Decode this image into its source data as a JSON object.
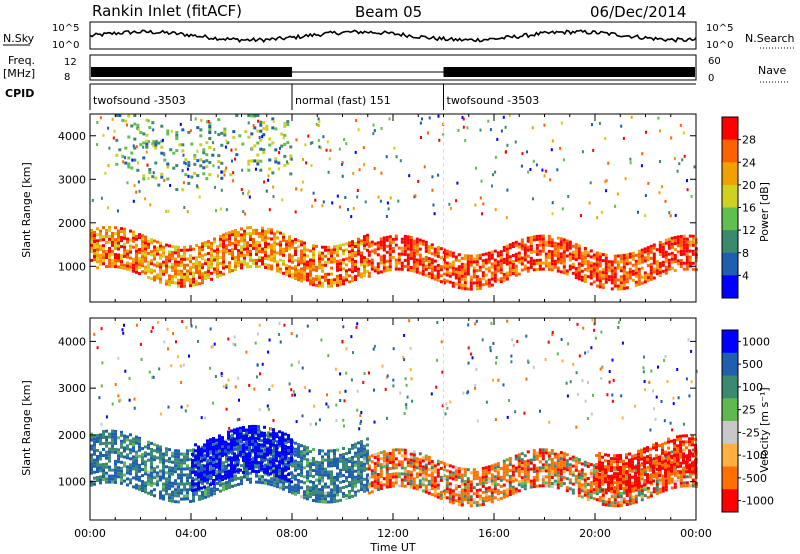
{
  "header": {
    "station": "Rankin Inlet (fitACF)",
    "beam": "Beam 05",
    "date": "06/Dec/2014"
  },
  "status_panels": {
    "nsky_label": "N.Sky",
    "nsearch_label": "N.Search",
    "freq_label": "Freq.",
    "freq_unit": "[MHz]",
    "nave_label": "Nave",
    "cpid_label": "CPID",
    "noise_ticks": [
      "10^5",
      "10^0"
    ],
    "freq_ticks": [
      "12",
      "8"
    ],
    "nave_ticks": [
      "60",
      "0"
    ]
  },
  "cpid_segments": [
    {
      "label": "twofsound -3503",
      "start_hour": 0,
      "end_hour": 8
    },
    {
      "label": "normal (fast) 151",
      "start_hour": 8,
      "end_hour": 14
    },
    {
      "label": "twofsound -3503",
      "start_hour": 14,
      "end_hour": 24
    }
  ],
  "colors": {
    "power_scale": [
      "#0000ff",
      "#1f5fb0",
      "#3b8a6f",
      "#5fbf4f",
      "#d0d020",
      "#f0a000",
      "#ff6000",
      "#ff0000"
    ],
    "velocity_scale": [
      "#0000ff",
      "#1f5fb0",
      "#3b8a6f",
      "#60b850",
      "#c8c8c8",
      "#ffb040",
      "#ff7000",
      "#ff0000"
    ]
  },
  "chart_data": [
    {
      "type": "heatmap",
      "panel": "power",
      "xlabel": "Time UT",
      "ylabel": "Slant Range [km]",
      "xlim": [
        0,
        24
      ],
      "ylim": [
        180,
        4500
      ],
      "x_ticks": [
        "00:00",
        "04:00",
        "08:00",
        "12:00",
        "16:00",
        "20:00",
        "00:00"
      ],
      "y_ticks": [
        1000,
        2000,
        3000,
        4000
      ],
      "colorbar": {
        "label": "Power [dB]",
        "ticks": [
          "4",
          "8",
          "12",
          "16",
          "20",
          "24",
          "28"
        ],
        "range": [
          0,
          30
        ]
      },
      "echo_bands": [
        {
          "start_hour": 0,
          "end_hour": 11,
          "range_low": 800,
          "range_high": 1700,
          "power_db": 24
        },
        {
          "start_hour": 11,
          "end_hour": 24,
          "range_low": 700,
          "range_high": 1500,
          "power_db": 28
        },
        {
          "start_hour": 1,
          "end_hour": 8,
          "range_low": 3000,
          "range_high": 4400,
          "power_db": 12
        }
      ]
    },
    {
      "type": "heatmap",
      "panel": "velocity",
      "xlabel": "Time UT",
      "ylabel": "Slant Range [km]",
      "xlim": [
        0,
        24
      ],
      "ylim": [
        180,
        4500
      ],
      "x_ticks": [
        "00:00",
        "04:00",
        "08:00",
        "12:00",
        "16:00",
        "20:00",
        "00:00"
      ],
      "y_ticks": [
        1000,
        2000,
        3000,
        4000
      ],
      "colorbar": {
        "label": "Velocity [m s⁻¹]",
        "ticks": [
          "1000",
          "500",
          "100",
          "25",
          "-25",
          "-100",
          "-500",
          "-1000"
        ],
        "range": [
          -1000,
          1000
        ]
      },
      "echo_bands": [
        {
          "start_hour": 0,
          "end_hour": 11,
          "range_low": 800,
          "range_high": 1900,
          "velocity": 300
        },
        {
          "start_hour": 4,
          "end_hour": 8,
          "range_low": 1000,
          "range_high": 2000,
          "velocity": 800
        },
        {
          "start_hour": 11,
          "end_hour": 24,
          "range_low": 700,
          "range_high": 1500,
          "velocity": -150
        },
        {
          "start_hour": 20,
          "end_hour": 24,
          "range_low": 1000,
          "range_high": 1800,
          "velocity": -400
        }
      ]
    }
  ]
}
